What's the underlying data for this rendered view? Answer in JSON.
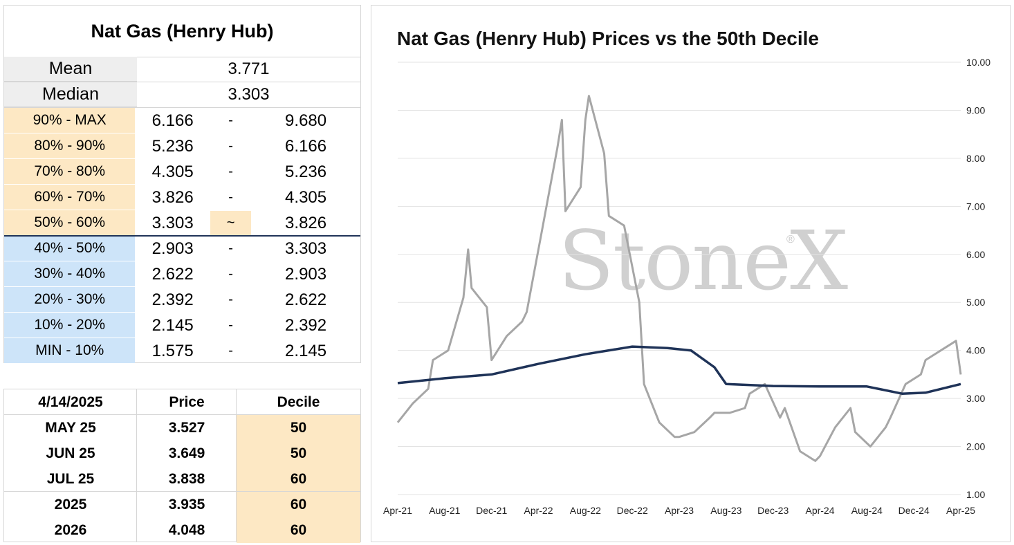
{
  "stats_table": {
    "title": "Nat Gas (Henry Hub)",
    "mean_label": "Mean",
    "mean_value": "3.771",
    "median_label": "Median",
    "median_value": "3.303",
    "deciles": [
      {
        "label": "90% - MAX",
        "low": "6.166",
        "sep": "-",
        "high": "9.680",
        "band": "orange"
      },
      {
        "label": "80% - 90%",
        "low": "5.236",
        "sep": "-",
        "high": "6.166",
        "band": "orange"
      },
      {
        "label": "70% - 80%",
        "low": "4.305",
        "sep": "-",
        "high": "5.236",
        "band": "orange"
      },
      {
        "label": "60% - 70%",
        "low": "3.826",
        "sep": "-",
        "high": "4.305",
        "band": "orange"
      },
      {
        "label": "50% - 60%",
        "low": "3.303",
        "sep": "~",
        "high": "3.826",
        "band": "orange",
        "current": true
      },
      {
        "label": "40% - 50%",
        "low": "2.903",
        "sep": "-",
        "high": "3.303",
        "band": "blue"
      },
      {
        "label": "30% - 40%",
        "low": "2.622",
        "sep": "-",
        "high": "2.903",
        "band": "blue"
      },
      {
        "label": "20% - 30%",
        "low": "2.392",
        "sep": "-",
        "high": "2.622",
        "band": "blue"
      },
      {
        "label": "10% - 20%",
        "low": "2.145",
        "sep": "-",
        "high": "2.392",
        "band": "blue"
      },
      {
        "label": "MIN - 10%",
        "low": "1.575",
        "sep": "-",
        "high": "2.145",
        "band": "blue"
      }
    ]
  },
  "futures_table": {
    "date_header": "4/14/2025",
    "price_header": "Price",
    "decile_header": "Decile",
    "rows": [
      {
        "contract": "MAY 25",
        "price": "3.527",
        "decile": "50"
      },
      {
        "contract": "JUN 25",
        "price": "3.649",
        "decile": "50"
      },
      {
        "contract": "JUL 25",
        "price": "3.838",
        "decile": "60"
      },
      {
        "contract": "2025",
        "price": "3.935",
        "decile": "60"
      },
      {
        "contract": "2026",
        "price": "4.048",
        "decile": "60"
      }
    ]
  },
  "watermark": {
    "text": "StoneX",
    "reg": "®"
  },
  "colors": {
    "price_line": "#a6a6a6",
    "decile_line": "#1f3358",
    "orange_fill": "#fde8c4",
    "blue_fill": "#cde4f9"
  },
  "chart_data": {
    "type": "line",
    "title": "Nat Gas (Henry Hub) Prices vs the 50th Decile",
    "xlabel": "",
    "ylabel": "",
    "ylim": [
      1.0,
      10.0
    ],
    "y_ticks": [
      "1.00",
      "2.00",
      "3.00",
      "4.00",
      "5.00",
      "6.00",
      "7.00",
      "8.00",
      "9.00",
      "10.00"
    ],
    "x_ticks": [
      "Apr-21",
      "Aug-21",
      "Dec-21",
      "Apr-22",
      "Aug-22",
      "Dec-22",
      "Apr-23",
      "Aug-23",
      "Dec-23",
      "Apr-24",
      "Aug-24",
      "Dec-24",
      "Apr-25"
    ],
    "x_axis_start": "2021-04",
    "x_axis_end": "2025-04",
    "grid": "horizontal",
    "y_axis_side": "right",
    "series": [
      {
        "name": "",
        "color": "#a6a6a6",
        "x": [
          "2021-04",
          "2021-05",
          "2021-06",
          "2021-07",
          "2021-08",
          "2021-09",
          "2021-10",
          "2021-10",
          "2021-11",
          "2021-12",
          "2022-01",
          "2022-02",
          "2022-03",
          "2022-04",
          "2022-05",
          "2022-06",
          "2022-06",
          "2022-07",
          "2022-08",
          "2022-08",
          "2022-09",
          "2022-10",
          "2022-11",
          "2022-12",
          "2023-01",
          "2023-02",
          "2023-03",
          "2023-04",
          "2023-05",
          "2023-06",
          "2023-07",
          "2023-08",
          "2023-09",
          "2023-10",
          "2023-11",
          "2023-12",
          "2024-01",
          "2024-02",
          "2024-03",
          "2024-04",
          "2024-05",
          "2024-06",
          "2024-07",
          "2024-08",
          "2024-09",
          "2024-10",
          "2024-11",
          "2024-12",
          "2025-01",
          "2025-02",
          "2025-03",
          "2025-04"
        ],
        "y": [
          2.5,
          2.9,
          3.2,
          3.8,
          4.0,
          5.1,
          6.1,
          5.3,
          4.9,
          3.8,
          4.3,
          4.6,
          4.8,
          6.5,
          8.2,
          8.8,
          6.9,
          7.4,
          8.8,
          9.3,
          8.1,
          6.8,
          6.6,
          5.0,
          3.3,
          2.5,
          2.2,
          2.2,
          2.3,
          2.6,
          2.7,
          2.7,
          2.8,
          3.1,
          3.3,
          2.6,
          2.8,
          1.9,
          1.7,
          1.8,
          2.4,
          2.8,
          2.3,
          2.0,
          2.4,
          2.6,
          3.3,
          3.5,
          3.8,
          4.0,
          4.2,
          3.5
        ]
      },
      {
        "name": "",
        "color": "#1f3358",
        "x": [
          "2021-04",
          "2021-08",
          "2021-12",
          "2022-04",
          "2022-08",
          "2022-12",
          "2023-03",
          "2023-05",
          "2023-07",
          "2023-08",
          "2023-12",
          "2024-04",
          "2024-08",
          "2024-11",
          "2025-01",
          "2025-04"
        ],
        "y": [
          3.32,
          3.42,
          3.5,
          3.72,
          3.92,
          4.08,
          4.05,
          4.0,
          3.65,
          3.3,
          3.26,
          3.25,
          3.25,
          3.1,
          3.12,
          3.3
        ]
      }
    ]
  }
}
